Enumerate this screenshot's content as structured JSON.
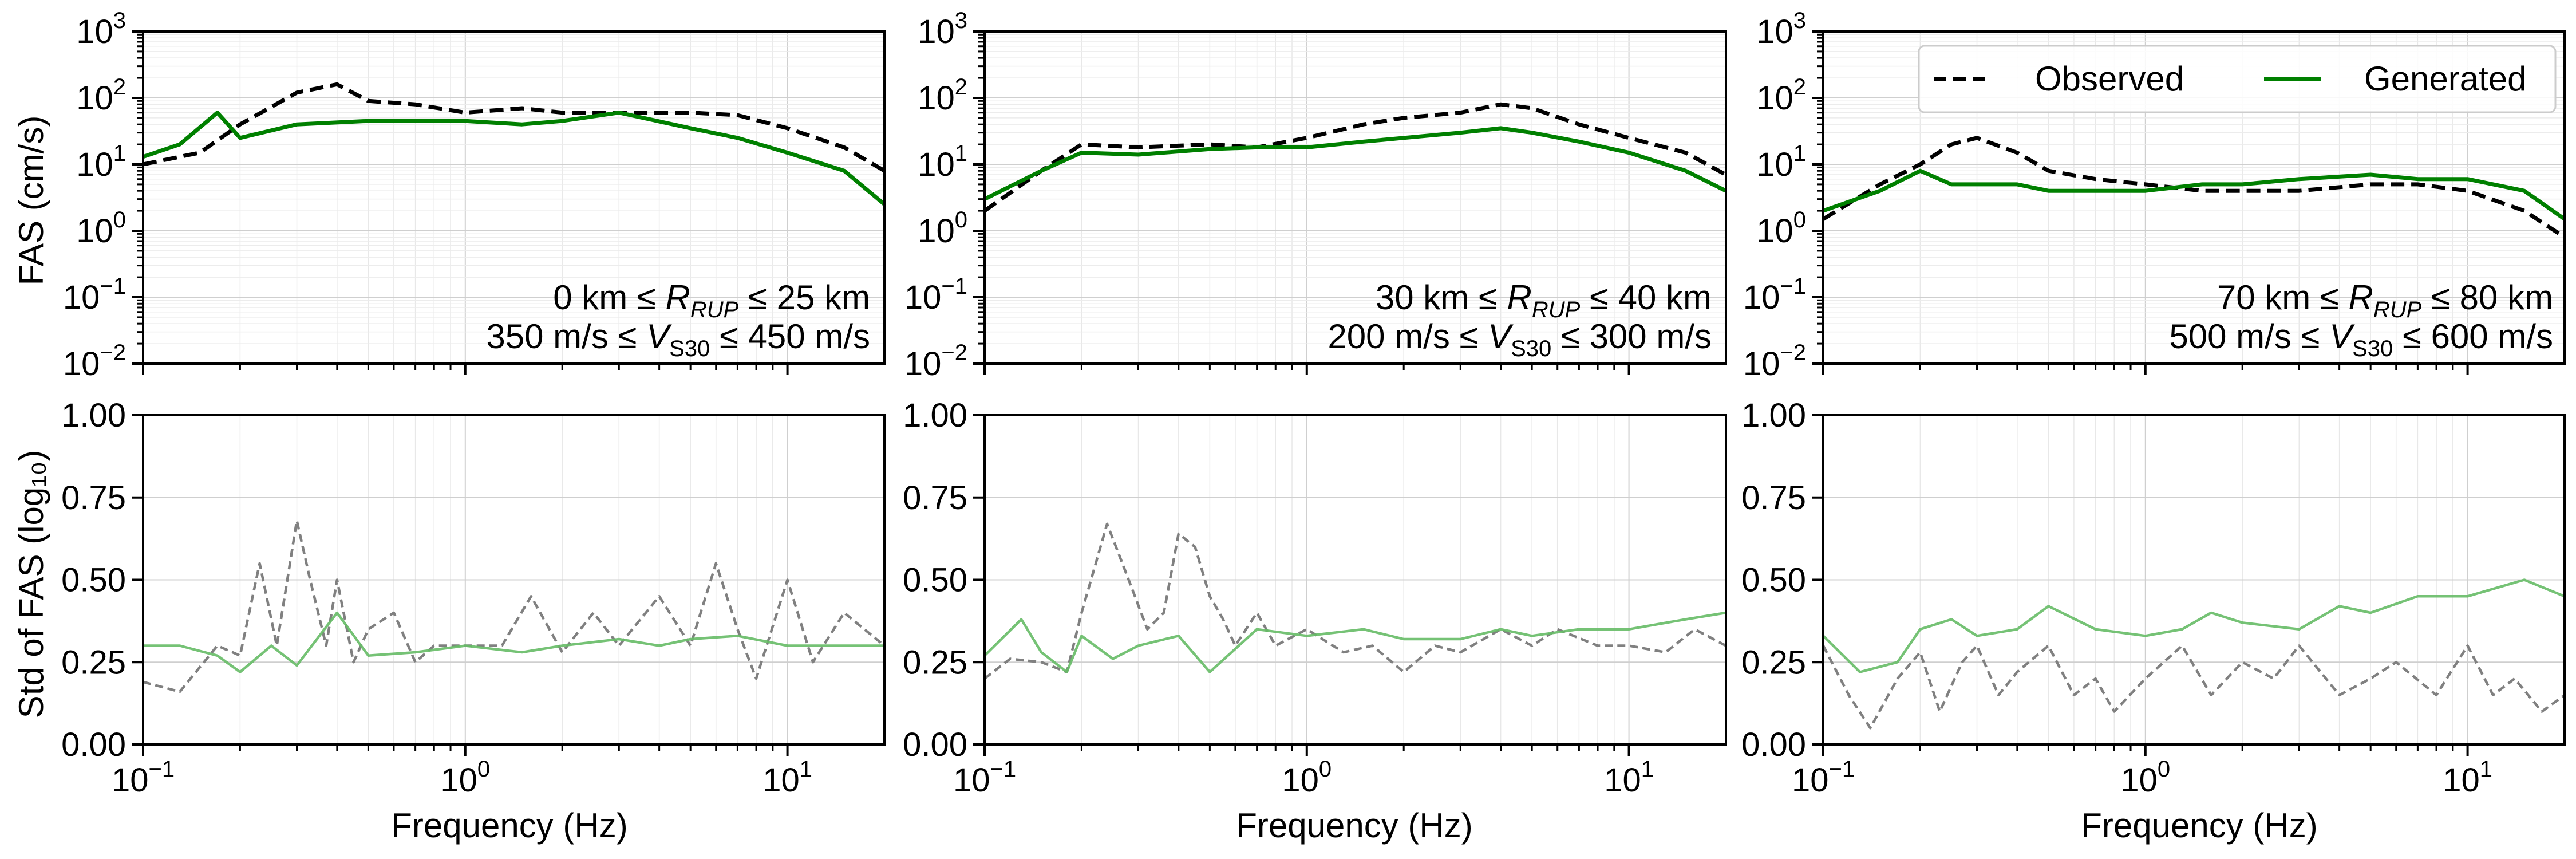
{
  "colors": {
    "observed_mean": "#000000",
    "generated_mean": "#008000",
    "observed_std": "#808080",
    "generated_std": "#66bb66",
    "grid": "#d9d9d9"
  },
  "legend": {
    "placement": "top-right (top-right panel)",
    "observed_label": "Observed",
    "generated_label": "Generated"
  },
  "chart_data": [
    {
      "type": "line",
      "panel": "top-left",
      "ylabel": "FAS (cm/s)",
      "xlabel": "",
      "xscale": "log",
      "yscale": "log",
      "xlim": [
        0.1,
        20
      ],
      "ylim": [
        0.01,
        1000
      ],
      "grid": true,
      "annotation": [
        "0 km ≤ R_RUP ≤ 25 km",
        "350 m/s ≤ V_S30 ≤ 450 m/s"
      ],
      "series": [
        {
          "name": "Observed",
          "style": "dashed",
          "x": [
            0.1,
            0.15,
            0.2,
            0.3,
            0.4,
            0.5,
            0.7,
            1,
            1.5,
            2,
            3,
            5,
            7,
            10,
            15,
            20
          ],
          "y": [
            10,
            15,
            40,
            120,
            160,
            90,
            80,
            60,
            70,
            60,
            60,
            60,
            55,
            35,
            18,
            8
          ]
        },
        {
          "name": "Generated",
          "style": "solid",
          "x": [
            0.1,
            0.13,
            0.17,
            0.2,
            0.3,
            0.5,
            0.7,
            1,
            1.5,
            2,
            3,
            5,
            7,
            10,
            15,
            20
          ],
          "y": [
            13,
            20,
            60,
            25,
            40,
            45,
            45,
            45,
            40,
            45,
            60,
            35,
            25,
            15,
            8,
            2.5
          ]
        }
      ]
    },
    {
      "type": "line",
      "panel": "top-middle",
      "ylabel": "",
      "xlabel": "",
      "xscale": "log",
      "yscale": "log",
      "xlim": [
        0.1,
        20
      ],
      "ylim": [
        0.01,
        1000
      ],
      "grid": true,
      "annotation": [
        "30 km ≤ R_RUP ≤ 40 km",
        "200 m/s ≤ V_S30 ≤ 300 m/s"
      ],
      "series": [
        {
          "name": "Observed",
          "style": "dashed",
          "x": [
            0.1,
            0.15,
            0.2,
            0.3,
            0.5,
            0.7,
            1,
            1.5,
            2,
            3,
            4,
            5,
            7,
            10,
            15,
            20
          ],
          "y": [
            2,
            8,
            20,
            18,
            20,
            18,
            25,
            40,
            50,
            60,
            80,
            70,
            40,
            25,
            15,
            7
          ]
        },
        {
          "name": "Generated",
          "style": "solid",
          "x": [
            0.1,
            0.15,
            0.2,
            0.3,
            0.5,
            0.7,
            1,
            1.5,
            2,
            3,
            4,
            5,
            7,
            10,
            15,
            20
          ],
          "y": [
            3,
            8,
            15,
            14,
            17,
            18,
            18,
            22,
            25,
            30,
            35,
            30,
            22,
            15,
            8,
            4
          ]
        }
      ]
    },
    {
      "type": "line",
      "panel": "top-right",
      "ylabel": "",
      "xlabel": "",
      "xscale": "log",
      "yscale": "log",
      "xlim": [
        0.1,
        20
      ],
      "ylim": [
        0.01,
        1000
      ],
      "grid": true,
      "annotation": [
        "70 km ≤ R_RUP ≤ 80 km",
        "500 m/s ≤ V_S30 ≤ 600 m/s"
      ],
      "series": [
        {
          "name": "Observed",
          "style": "dashed",
          "x": [
            0.1,
            0.15,
            0.2,
            0.25,
            0.3,
            0.4,
            0.5,
            0.7,
            1,
            1.5,
            2,
            3,
            5,
            7,
            10,
            15,
            20
          ],
          "y": [
            1.5,
            5,
            10,
            20,
            25,
            15,
            8,
            6,
            5,
            4,
            4,
            4,
            5,
            5,
            4,
            2,
            0.8
          ]
        },
        {
          "name": "Generated",
          "style": "solid",
          "x": [
            0.1,
            0.15,
            0.2,
            0.25,
            0.3,
            0.4,
            0.5,
            0.7,
            1,
            1.5,
            2,
            3,
            5,
            7,
            10,
            15,
            20
          ],
          "y": [
            2,
            4,
            8,
            5,
            5,
            5,
            4,
            4,
            4,
            5,
            5,
            6,
            7,
            6,
            6,
            4,
            1.5
          ]
        }
      ]
    },
    {
      "type": "line",
      "panel": "bottom-left",
      "ylabel": "Std of FAS (log₁₀)",
      "xlabel": "Frequency (Hz)",
      "xscale": "log",
      "yscale": "linear",
      "xlim": [
        0.1,
        20
      ],
      "ylim": [
        0,
        1.0
      ],
      "yticks": [
        "0.00",
        "0.25",
        "0.50",
        "0.75",
        "1.00"
      ],
      "grid": true,
      "series": [
        {
          "name": "Observed",
          "style": "dashed",
          "x": [
            0.1,
            0.13,
            0.17,
            0.2,
            0.23,
            0.26,
            0.3,
            0.33,
            0.37,
            0.4,
            0.45,
            0.5,
            0.6,
            0.7,
            0.8,
            1,
            1.3,
            1.6,
            2,
            2.5,
            3,
            4,
            5,
            6,
            7,
            8,
            10,
            12,
            15,
            20
          ],
          "y": [
            0.19,
            0.16,
            0.3,
            0.27,
            0.55,
            0.3,
            0.68,
            0.5,
            0.3,
            0.5,
            0.25,
            0.35,
            0.4,
            0.25,
            0.3,
            0.3,
            0.3,
            0.45,
            0.28,
            0.4,
            0.3,
            0.45,
            0.3,
            0.55,
            0.35,
            0.2,
            0.5,
            0.25,
            0.4,
            0.3
          ]
        },
        {
          "name": "Generated",
          "style": "solid",
          "x": [
            0.1,
            0.13,
            0.17,
            0.2,
            0.25,
            0.3,
            0.4,
            0.5,
            0.7,
            1,
            1.5,
            2,
            3,
            4,
            5,
            7,
            10,
            15,
            20
          ],
          "y": [
            0.3,
            0.3,
            0.27,
            0.22,
            0.3,
            0.24,
            0.4,
            0.27,
            0.28,
            0.3,
            0.28,
            0.3,
            0.32,
            0.3,
            0.32,
            0.33,
            0.3,
            0.3,
            0.3
          ]
        }
      ]
    },
    {
      "type": "line",
      "panel": "bottom-middle",
      "ylabel": "",
      "xlabel": "Frequency (Hz)",
      "xscale": "log",
      "yscale": "linear",
      "xlim": [
        0.1,
        20
      ],
      "ylim": [
        0,
        1.0
      ],
      "yticks": [
        "0.00",
        "0.25",
        "0.50",
        "0.75",
        "1.00"
      ],
      "grid": true,
      "series": [
        {
          "name": "Observed",
          "style": "dashed",
          "x": [
            0.1,
            0.12,
            0.15,
            0.18,
            0.2,
            0.24,
            0.28,
            0.32,
            0.36,
            0.4,
            0.45,
            0.5,
            0.55,
            0.6,
            0.7,
            0.8,
            1,
            1.3,
            1.6,
            2,
            2.5,
            3,
            4,
            5,
            6,
            8,
            10,
            13,
            16,
            20
          ],
          "y": [
            0.2,
            0.26,
            0.25,
            0.22,
            0.4,
            0.67,
            0.5,
            0.35,
            0.4,
            0.64,
            0.6,
            0.45,
            0.38,
            0.3,
            0.4,
            0.3,
            0.35,
            0.28,
            0.3,
            0.22,
            0.3,
            0.28,
            0.35,
            0.3,
            0.35,
            0.3,
            0.3,
            0.28,
            0.35,
            0.3
          ]
        },
        {
          "name": "Generated",
          "style": "solid",
          "x": [
            0.1,
            0.13,
            0.15,
            0.18,
            0.2,
            0.25,
            0.3,
            0.4,
            0.5,
            0.7,
            1,
            1.5,
            2,
            3,
            4,
            5,
            7,
            10,
            15,
            20
          ],
          "y": [
            0.27,
            0.38,
            0.28,
            0.22,
            0.33,
            0.26,
            0.3,
            0.33,
            0.22,
            0.35,
            0.33,
            0.35,
            0.32,
            0.32,
            0.35,
            0.33,
            0.35,
            0.35,
            0.38,
            0.4
          ]
        }
      ]
    },
    {
      "type": "line",
      "panel": "bottom-right",
      "ylabel": "",
      "xlabel": "Frequency (Hz)",
      "xscale": "log",
      "yscale": "linear",
      "xlim": [
        0.1,
        20
      ],
      "ylim": [
        0,
        1.0
      ],
      "yticks": [
        "0.00",
        "0.25",
        "0.50",
        "0.75",
        "1.00"
      ],
      "grid": true,
      "series": [
        {
          "name": "Observed",
          "style": "dashed",
          "x": [
            0.1,
            0.12,
            0.14,
            0.17,
            0.2,
            0.23,
            0.27,
            0.3,
            0.35,
            0.4,
            0.5,
            0.6,
            0.7,
            0.8,
            1,
            1.3,
            1.6,
            2,
            2.5,
            3,
            4,
            5,
            6,
            8,
            10,
            12,
            14,
            17,
            20
          ],
          "y": [
            0.3,
            0.15,
            0.05,
            0.2,
            0.28,
            0.1,
            0.25,
            0.3,
            0.15,
            0.22,
            0.3,
            0.15,
            0.2,
            0.1,
            0.2,
            0.3,
            0.15,
            0.25,
            0.2,
            0.3,
            0.15,
            0.2,
            0.25,
            0.15,
            0.3,
            0.15,
            0.2,
            0.1,
            0.15
          ]
        },
        {
          "name": "Generated",
          "style": "solid",
          "x": [
            0.1,
            0.13,
            0.17,
            0.2,
            0.25,
            0.3,
            0.4,
            0.5,
            0.7,
            1,
            1.3,
            1.6,
            2,
            3,
            4,
            5,
            7,
            10,
            15,
            20
          ],
          "y": [
            0.33,
            0.22,
            0.25,
            0.35,
            0.38,
            0.33,
            0.35,
            0.42,
            0.35,
            0.33,
            0.35,
            0.4,
            0.37,
            0.35,
            0.42,
            0.4,
            0.45,
            0.45,
            0.5,
            0.45
          ]
        }
      ]
    }
  ]
}
